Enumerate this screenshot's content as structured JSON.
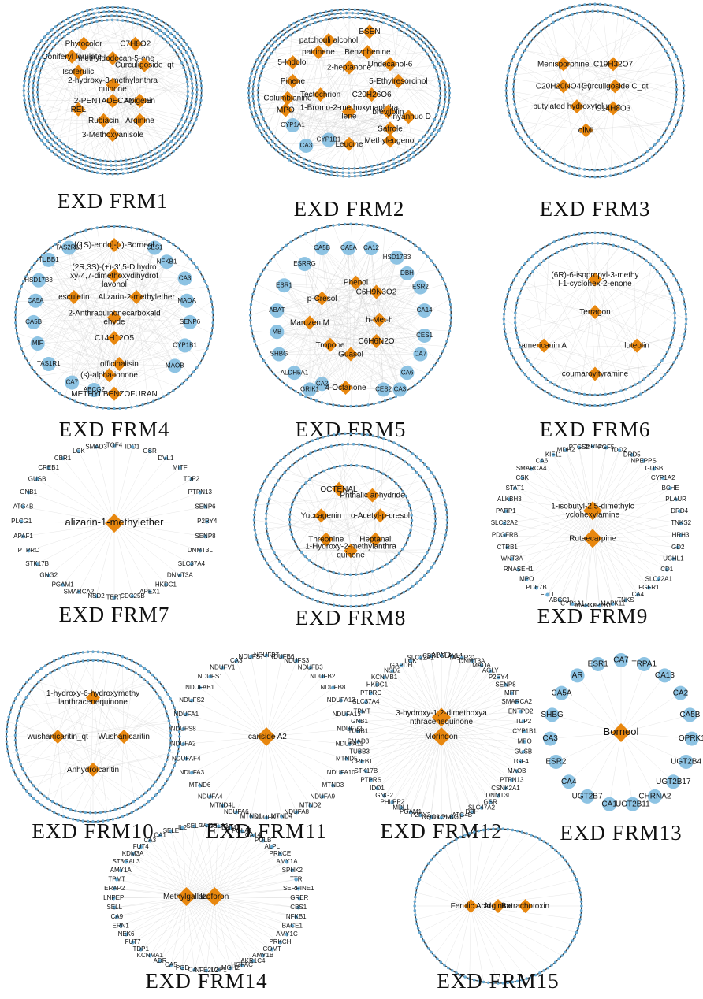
{
  "colors": {
    "compound": "#e8870e",
    "target": "#6aaed6",
    "edge": "#bdbdbd",
    "ring": "#3a3a3a"
  },
  "panels": [
    {
      "caption": "EXD  FRM1",
      "compounds": [
        "Phytocolor",
        "C7H8O2",
        "2-methyldodecan-5-one",
        "Curculigoside_qt",
        "Isoferulic",
        "2-hydroxy-3-methylanthraquinone",
        "2-PENTADECANONE",
        "Apigenin",
        "REL",
        "Rubiacin",
        "Arginine",
        "3-Methoxyanisole",
        "Coniferyl ferulate"
      ],
      "targets": []
    },
    {
      "caption": "EXD  FRM2",
      "compounds": [
        "patchouli alcohol",
        "BSEN",
        "patrinene",
        "Benzphenine",
        "5-Indolol",
        "2-heptanone",
        "Undecanol-6",
        "Pinene",
        "5-Ethylresorcinol",
        "Columbianine",
        "Tectochrion",
        "C20H26O6",
        "MPO",
        "1-Bromo-2-methoxynaphthalene",
        "brevifolin",
        "Yinyanhuo D",
        "Safrole",
        "Leucine",
        "Methyleugenol"
      ],
      "targets": [
        "CYP1A1",
        "CA3",
        "CYP1B1"
      ]
    },
    {
      "caption": "EXD  FRM3",
      "compounds": [
        "Menisporphine",
        "C19H32O7",
        "C20H20NO4(+)",
        "Curculigoside C_qt",
        "butylated hydroxytoluene",
        "C14H8O3",
        "olivil"
      ],
      "targets": []
    },
    {
      "caption": "EXD  FRM4",
      "compounds": [
        "[(1S)-endo]-(-)-Borneol",
        "(2R,3S)-(+)-3',5-Dihydroxy-4,7-dimethoxydihydroflavonol",
        "esculetin",
        "Alizarin-2-methylether",
        "2-Anthraquinonecarboxaldehyde",
        "C14H12O5",
        "officinalisin",
        "(s)-alpha-ionone",
        "METHYLBENZOFURAN"
      ],
      "targets": [
        "TAS2R13",
        "CES1",
        "TUBB1",
        "NFKB1",
        "HSD17B3",
        "CA3",
        "CA5A",
        "MAOA",
        "CA5B",
        "SENP6",
        "MIF",
        "CYP1B1",
        "TAS1R1",
        "MAOB",
        "CA7",
        "ABCG2"
      ]
    },
    {
      "caption": "EXD  FRM5",
      "compounds": [
        "Phenol",
        "p-Cresol",
        "C6H9N3O2",
        "Maruzen M",
        "h-Met-h",
        "Tropone",
        "C6H6N2O",
        "Guasol",
        "4-Octanone"
      ],
      "targets": [
        "CA5B",
        "CA5A",
        "CA12",
        "HSD17B3",
        "ESRRG",
        "DBH",
        "ESR1",
        "ESR2",
        "ABAT",
        "CA14",
        "MB",
        "CES1",
        "SHBG",
        "CA7",
        "ALDH5A1",
        "CA6",
        "CA2",
        "GRIK1",
        "CES2",
        "CA3"
      ]
    },
    {
      "caption": "EXD  FRM6",
      "compounds": [
        "(6R)-6-isopropyl-3-methyl-1-cyclohex-2-enone",
        "Terragon",
        "americanin A",
        "luteolin",
        "coumaroyltyramine"
      ],
      "targets": []
    },
    {
      "caption": "EXD  FRM7",
      "compounds": [
        "alizarin-1-methylether"
      ],
      "targets": [
        "TGF4",
        "IDO1",
        "GSR",
        "DVL1",
        "MITF",
        "TDP2",
        "PTPN13",
        "SENP6",
        "P2RY4",
        "SENP8",
        "DNMT3L",
        "SLC37A4",
        "DNMT3A",
        "HKDC1",
        "APEX1",
        "CDC25B",
        "TERT",
        "NSD2",
        "SMARCA2",
        "PGAM1",
        "GNG2",
        "STK17B",
        "PTPRC",
        "APAF1",
        "PLCG1",
        "ATG4B",
        "GNB1",
        "GUSB",
        "CREB1",
        "CBR1",
        "LCK",
        "SMAD3"
      ]
    },
    {
      "caption": "EXD  FRM8",
      "compounds": [
        "OCTENAL",
        "Phthalic anhydride",
        "Yuccagenin",
        "o-Acetyl-p-cresol",
        "Threonine",
        "Heptanal",
        "1-Hydroxy-2-methylanthraquinone"
      ],
      "targets": []
    },
    {
      "caption": "EXD  FRM9",
      "compounds": [
        "1-isobutyl-2,5-dimethylcyclohexylamine",
        "Rutaecarpine"
      ],
      "targets": [
        "CHRNE",
        "FGF5",
        "IDO2",
        "DRD5",
        "NPEPPS",
        "GUSB",
        "CYP1A2",
        "BCHE",
        "PLAUR",
        "DRD4",
        "TNKS2",
        "HRH3",
        "GD2",
        "UCHL1",
        "CD1",
        "SLC22A1",
        "FGFR1",
        "CA4",
        "TNKS",
        "MAPK11",
        "CYP1B1",
        "MAPK9",
        "CYP1A1",
        "ABCC1",
        "FLT1",
        "PDE7B",
        "MPO",
        "RNASEH1",
        "WNT3A",
        "CTRB1",
        "PDGFRB",
        "SLC22A2",
        "PARP1",
        "ALKBH3",
        "STAT1",
        "CSK",
        "SMARCA4",
        "CA6",
        "KIF11",
        "MDH2",
        "PTGS2"
      ]
    },
    {
      "caption": "EXD  FRM10",
      "compounds": [
        "1-hydroxy-6-hydroxymethylanthracenequinone",
        "wushanicaritin_qt",
        "Wushanicaritin",
        "Anhydroicaritin"
      ],
      "targets": []
    },
    {
      "caption": "EXD  FRM11",
      "compounds": [
        "Icariside A2"
      ],
      "targets": [
        "NDUFB7",
        "NDUFB6",
        "NDUFS3",
        "NDUFB3",
        "NDUFB2",
        "NDUFB8",
        "NDUFA12",
        "NDUFA13",
        "NDUFV2",
        "NDUFA11",
        "MTND5",
        "NDUFA10",
        "MTND3",
        "NDUFA9",
        "MTND2",
        "NDUFA8",
        "MTND4",
        "NDUFA7",
        "MTND1",
        "NDUFA6",
        "MTND4L",
        "NDUFA4",
        "MTND6",
        "NDUFA3",
        "NDUFAF4",
        "NDUFA2",
        "NDUFS8",
        "NDUFA1",
        "NDUFS2",
        "NDUFAB1",
        "NDUFS1",
        "NDUFV1",
        "CA3",
        "NDUFS7"
      ]
    },
    {
      "caption": "EXD  FRM12",
      "compounds": [
        "3-hydroxy-1,2-dimethoxyanthracenequinone",
        "Morindon"
      ],
      "targets": [
        "APAF1",
        "ELAVL1",
        "TAS2R31",
        "DNMT3A",
        "MAOA",
        "AGLY",
        "P2RY4",
        "SENP8",
        "MITF",
        "SMARCA2",
        "ENTPD2",
        "TDP2",
        "CYP1B1",
        "MPO",
        "GUSB",
        "TGF4",
        "MAOB",
        "PTPN13",
        "CSNK2A1",
        "DNMT3L",
        "GSR",
        "SLC47A2",
        "DBH",
        "ATG4B",
        "PLCG1",
        "CDC25B",
        "NQO1",
        "P2RY2",
        "PGAM1",
        "MDL1",
        "PHLPP2",
        "GNG2",
        "IDO1",
        "PTPRS",
        "STK17B",
        "CREB1",
        "TUBB3",
        "SMAD3",
        "TUBB1",
        "GNB1",
        "TPMT",
        "SLC37A4",
        "PTPRC",
        "HKDC1",
        "KCNMB1",
        "NSD2",
        "GAPDH",
        "LCK",
        "SLC22A1",
        "CBR1"
      ]
    },
    {
      "caption": "EXD  FRM13",
      "compounds": [
        "Borneol"
      ],
      "targets": [
        "CA7",
        "TRPA1",
        "CA13",
        "CA2",
        "CA5B",
        "OPRK1",
        "UGT2B4",
        "UGT2B17",
        "CHRNA2",
        "UGT2B11",
        "CA1",
        "UGT2B7",
        "CA4",
        "ESR2",
        "CA3",
        "SHBG",
        "CA5A",
        "AR",
        "ESR1"
      ]
    },
    {
      "caption": "EXD  FRM14",
      "compounds": [
        "Methylgallate",
        "Izoforon"
      ],
      "targets": [
        "CA12",
        "CELA1",
        "DNM1",
        "POLA1",
        "CA14",
        "POLB",
        "ALPL",
        "PRKCE",
        "AMY1A",
        "SPHK2",
        "TTR",
        "SERPINE1",
        "GRER",
        "CBS1",
        "NFKB1",
        "BACE1",
        "AMY1C",
        "PRKCH",
        "COMT",
        "AMY1B",
        "AKR1C4",
        "HGFAC",
        "MGH2",
        "TOP1",
        "NFE2L2",
        "CA7",
        "PGD",
        "CA5",
        "ADR",
        "KCNMA1",
        "TDP1",
        "FUT7",
        "NEK6",
        "ERN1",
        "CA9",
        "SELL",
        "LNPEP",
        "ERAP2",
        "TPMT",
        "AMY1A",
        "ST3GAL3",
        "KDM3A",
        "FUT4",
        "CA3",
        "CA1",
        "SELE",
        "IL2",
        "SELP"
      ]
    },
    {
      "caption": "EXD  FRM15",
      "compounds": [
        "Ferulic Acid",
        "Arginine",
        "Batrachotoxin"
      ],
      "targets": []
    }
  ]
}
